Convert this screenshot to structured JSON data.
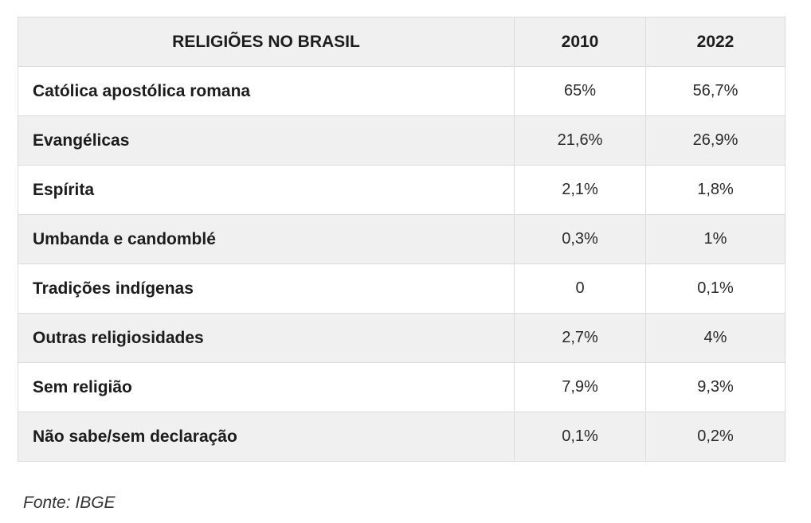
{
  "table": {
    "headers": [
      "RELIGIÕES NO BRASIL",
      "2010",
      "2022"
    ],
    "rows": [
      [
        "Católica apostólica romana",
        "65%",
        "56,7%"
      ],
      [
        "Evangélicas",
        "21,6%",
        "26,9%"
      ],
      [
        "Espírita",
        "2,1%",
        "1,8%"
      ],
      [
        "Umbanda e candomblé",
        "0,3%",
        "1%"
      ],
      [
        "Tradições indígenas",
        "0",
        "0,1%"
      ],
      [
        "Outras religiosidades",
        "2,7%",
        "4%"
      ],
      [
        "Sem religião",
        "7,9%",
        "9,3%"
      ],
      [
        "Não sabe/sem declaração",
        "0,1%",
        "0,2%"
      ]
    ]
  },
  "source": "Fonte: IBGE",
  "colors": {
    "header_bg": "#f0f0f0",
    "stripe_bg": "#f0f0f0",
    "border": "#dcdcdc"
  }
}
